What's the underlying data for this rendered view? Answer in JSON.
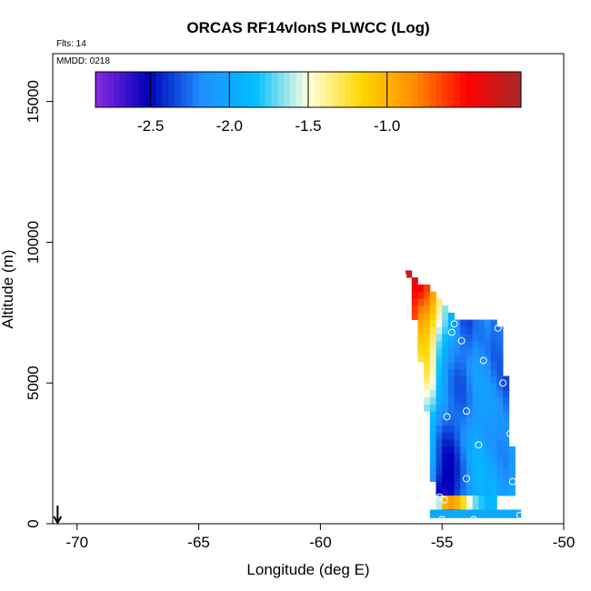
{
  "chart_data": {
    "type": "heatmap",
    "title": "ORCAS RF14vlonS PLWCC (Log)",
    "annotations": {
      "flights": "Flts: 14",
      "mmdd": "MMDD: 0218"
    },
    "xlabel": "Longitude (deg E)",
    "ylabel": "Altitude (m)",
    "xlim": [
      -71,
      -50
    ],
    "ylim": [
      0,
      16700
    ],
    "x_ticks": [
      -70,
      -65,
      -60,
      -55,
      -50
    ],
    "x_tick_labels": [
      "-70",
      "-65",
      "-60",
      "-55",
      "-50"
    ],
    "y_ticks": [
      0,
      5000,
      10000,
      15000
    ],
    "y_tick_labels": [
      "0",
      "5000",
      "10000",
      "15000"
    ],
    "colorbar": {
      "range": [
        -2.85,
        -0.15
      ],
      "ticks": [
        -2.5,
        -2.0,
        -1.5,
        -1.0
      ],
      "tick_labels": [
        "-2.5",
        "-2.0",
        "-1.5",
        "-1.0"
      ],
      "colors": [
        "#8a2be2",
        "#0000b8",
        "#1e90ff",
        "#00bfff",
        "#ffffe0",
        "#ffd700",
        "#ff8c00",
        "#ff0000",
        "#a52a2a"
      ]
    },
    "grid_cell": {
      "lon_width": 0.25,
      "alt_height": 250
    },
    "columns": [
      {
        "lon": -56.5,
        "alt_min": 8750,
        "alt_max": 9000,
        "v_bottom": -0.3,
        "v_top": -0.3
      },
      {
        "lon": -56.25,
        "alt_min": 7250,
        "alt_max": 8750,
        "v_bottom": -0.6,
        "v_top": -0.4
      },
      {
        "lon": -56.0,
        "alt_min": 5750,
        "alt_max": 8500,
        "v_bottom": -1.3,
        "v_top": -0.5
      },
      {
        "lon": -55.75,
        "alt_min": 4000,
        "alt_max": 8500,
        "v_bottom": -1.6,
        "v_top": -0.7
      },
      {
        "lon": -55.5,
        "alt_min": 1500,
        "alt_max": 8250,
        "v_bottom": -2.2,
        "v_top": -1.0
      },
      {
        "lon": -55.25,
        "alt_min": 750,
        "alt_max": 8000,
        "v_bottom": -2.6,
        "v_top": -1.4
      },
      {
        "lon": -55.0,
        "alt_min": 500,
        "alt_max": 7750,
        "v_bottom": -2.7,
        "v_top": -1.7
      },
      {
        "lon": -54.75,
        "alt_min": 500,
        "alt_max": 7500,
        "v_bottom": -2.6,
        "v_top": -2.0
      },
      {
        "lon": -54.5,
        "alt_min": 500,
        "alt_max": 7250,
        "v_bottom": -2.4,
        "v_top": -2.2
      },
      {
        "lon": -54.25,
        "alt_min": 500,
        "alt_max": 7250,
        "v_bottom": -2.2,
        "v_top": -2.3
      },
      {
        "lon": -54.0,
        "alt_min": 500,
        "alt_max": 7250,
        "v_bottom": -2.0,
        "v_top": -2.3
      },
      {
        "lon": -53.75,
        "alt_min": 500,
        "alt_max": 7250,
        "v_bottom": -1.9,
        "v_top": -2.2
      },
      {
        "lon": -53.5,
        "alt_min": 500,
        "alt_max": 7250,
        "v_bottom": -1.9,
        "v_top": -2.2
      },
      {
        "lon": -53.25,
        "alt_min": 500,
        "alt_max": 7250,
        "v_bottom": -2.0,
        "v_top": -2.2
      },
      {
        "lon": -53.0,
        "alt_min": 1000,
        "alt_max": 7250,
        "v_bottom": -2.0,
        "v_top": -2.3
      },
      {
        "lon": -52.75,
        "alt_min": 1000,
        "alt_max": 7000,
        "v_bottom": -2.1,
        "v_top": -2.3
      },
      {
        "lon": -52.5,
        "alt_min": 1000,
        "alt_max": 5250,
        "v_bottom": -2.1,
        "v_top": -2.3
      },
      {
        "lon": -52.25,
        "alt_min": 1000,
        "alt_max": 2750,
        "v_bottom": -2.0,
        "v_top": -2.1
      }
    ],
    "bottom_band": [
      {
        "lon": -55.25,
        "v": -1.6
      },
      {
        "lon": -55.0,
        "v": -1.0
      },
      {
        "lon": -54.75,
        "v": -0.9
      },
      {
        "lon": -54.5,
        "v": -1.0
      },
      {
        "lon": -54.25,
        "v": -1.2
      },
      {
        "lon": -54.0,
        "v": -1.5
      },
      {
        "lon": -53.75,
        "v": -1.7
      },
      {
        "lon": -53.5,
        "v": -1.8
      },
      {
        "lon": -53.25,
        "v": -1.9
      },
      {
        "lon": -53.0,
        "v": -1.9
      }
    ],
    "surface_band": {
      "lon_min": -55.5,
      "lon_max": -51.75,
      "alt_min": 200,
      "alt_max": 500,
      "v": -2.0
    },
    "sample_points": [
      {
        "lon": -56.6,
        "alt": 8800
      },
      {
        "lon": -54.5,
        "alt": 7100
      },
      {
        "lon": -54.6,
        "alt": 6800
      },
      {
        "lon": -52.7,
        "alt": 6950
      },
      {
        "lon": -54.2,
        "alt": 6500
      },
      {
        "lon": -53.3,
        "alt": 5800
      },
      {
        "lon": -52.5,
        "alt": 5000
      },
      {
        "lon": -54.0,
        "alt": 4000
      },
      {
        "lon": -54.8,
        "alt": 3800
      },
      {
        "lon": -53.5,
        "alt": 2800
      },
      {
        "lon": -52.2,
        "alt": 3200
      },
      {
        "lon": -54.0,
        "alt": 1600
      },
      {
        "lon": -52.1,
        "alt": 1500
      },
      {
        "lon": -55.1,
        "alt": 950
      },
      {
        "lon": -54.9,
        "alt": 850
      },
      {
        "lon": -55.0,
        "alt": 150
      },
      {
        "lon": -53.7,
        "alt": 150
      },
      {
        "lon": -51.8,
        "alt": 300
      }
    ],
    "takeoff_marker": {
      "lon": -70.8,
      "alt": 0
    }
  }
}
